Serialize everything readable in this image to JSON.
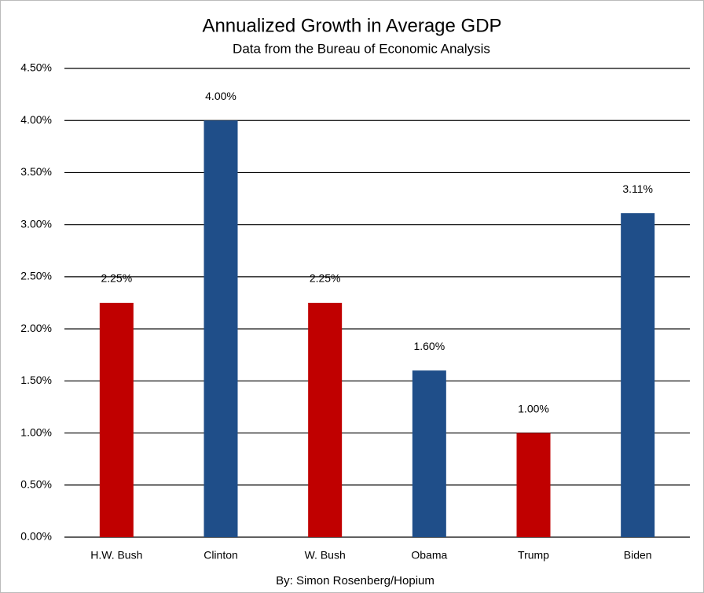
{
  "chart_data": {
    "type": "bar",
    "title": "Annualized Growth in Average GDP",
    "subtitle": "Data from the Bureau of Economic Analysis",
    "footer": "By: Simon Rosenberg/Hopium",
    "categories": [
      "H.W. Bush",
      "Clinton",
      "W. Bush",
      "Obama",
      "Trump",
      "Biden"
    ],
    "values": [
      2.25,
      4.0,
      2.25,
      1.6,
      1.0,
      3.11
    ],
    "value_labels": [
      "2.25%",
      "4.00%",
      "2.25%",
      "1.60%",
      "1.00%",
      "3.11%"
    ],
    "colors": [
      "#c00000",
      "#1f4e89",
      "#c00000",
      "#1f4e89",
      "#c00000",
      "#1f4e89"
    ],
    "ylim": [
      0,
      4.5
    ],
    "yticks": [
      {
        "value": 0,
        "label": "0.00%"
      },
      {
        "value": 0.5,
        "label": "0.50%"
      },
      {
        "value": 1,
        "label": "1.00%"
      },
      {
        "value": 1.5,
        "label": "1.50%"
      },
      {
        "value": 2,
        "label": "2.00%"
      },
      {
        "value": 2.5,
        "label": "2.50%"
      },
      {
        "value": 3,
        "label": "3.00%"
      },
      {
        "value": 3.5,
        "label": "3.50%"
      },
      {
        "value": 4,
        "label": "4.00%"
      },
      {
        "value": 4.5,
        "label": "4.50%"
      }
    ],
    "grid": true
  }
}
